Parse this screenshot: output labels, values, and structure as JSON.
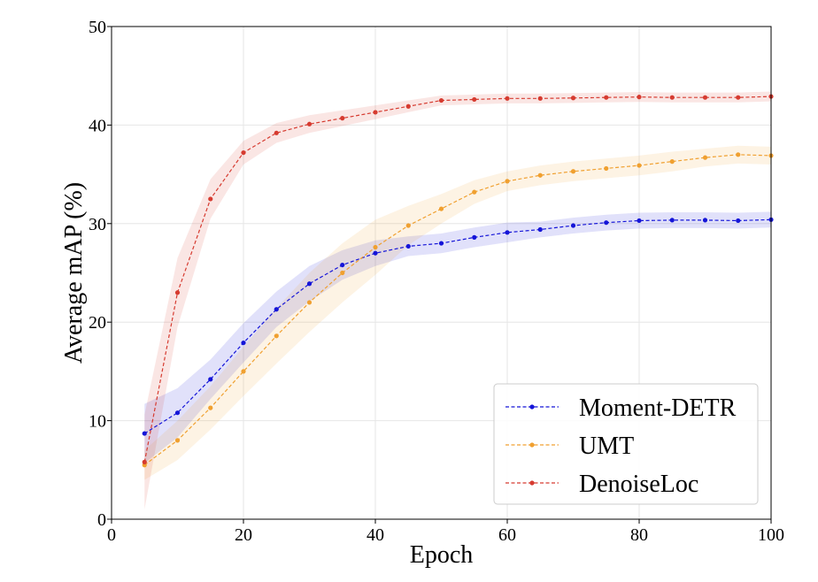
{
  "chart_data": {
    "type": "line",
    "title": "",
    "xlabel": "Epoch",
    "ylabel": "Average mAP (%)",
    "xlim": [
      0,
      100
    ],
    "ylim": [
      0,
      50
    ],
    "xticks": [
      0,
      20,
      40,
      60,
      80,
      100
    ],
    "yticks": [
      0,
      10,
      20,
      30,
      40,
      50
    ],
    "grid": true,
    "legend_position": "bottom-right",
    "x": [
      5,
      10,
      15,
      20,
      25,
      30,
      35,
      40,
      45,
      50,
      55,
      60,
      65,
      70,
      75,
      80,
      85,
      90,
      95,
      100
    ],
    "series": [
      {
        "name": "Moment-DETR",
        "color": "#1515d8",
        "values": [
          8.7,
          10.8,
          14.2,
          17.9,
          21.3,
          23.9,
          25.8,
          27.0,
          27.7,
          28.0,
          28.6,
          29.1,
          29.4,
          29.8,
          30.1,
          30.3,
          30.35,
          30.35,
          30.3,
          30.4
        ],
        "band": [
          3.0,
          2.5,
          2.0,
          2.0,
          1.8,
          1.8,
          1.5,
          1.3,
          1.0,
          1.0,
          1.0,
          1.0,
          0.8,
          0.8,
          0.8,
          0.8,
          0.8,
          0.8,
          0.8,
          0.8
        ]
      },
      {
        "name": "UMT",
        "color": "#f0a030",
        "values": [
          5.5,
          8.0,
          11.3,
          15.0,
          18.6,
          22.0,
          25.0,
          27.6,
          29.8,
          31.5,
          33.2,
          34.3,
          34.9,
          35.3,
          35.6,
          35.9,
          36.3,
          36.7,
          37.0,
          36.9
        ],
        "band": [
          1.5,
          2.0,
          2.2,
          2.5,
          2.8,
          3.0,
          3.0,
          2.8,
          2.0,
          1.5,
          1.2,
          1.0,
          1.0,
          1.0,
          1.0,
          1.0,
          1.0,
          0.9,
          0.9,
          0.9
        ]
      },
      {
        "name": "DenoiseLoc",
        "color": "#d63b30",
        "values": [
          5.8,
          23.0,
          32.5,
          37.2,
          39.2,
          40.1,
          40.7,
          41.3,
          41.9,
          42.5,
          42.6,
          42.7,
          42.7,
          42.75,
          42.8,
          42.85,
          42.8,
          42.8,
          42.8,
          42.9
        ],
        "band": [
          4.8,
          3.5,
          2.0,
          1.2,
          1.0,
          0.9,
          0.8,
          0.7,
          0.6,
          0.5,
          0.5,
          0.5,
          0.5,
          0.5,
          0.5,
          0.5,
          0.5,
          0.5,
          0.5,
          0.5
        ]
      }
    ]
  }
}
